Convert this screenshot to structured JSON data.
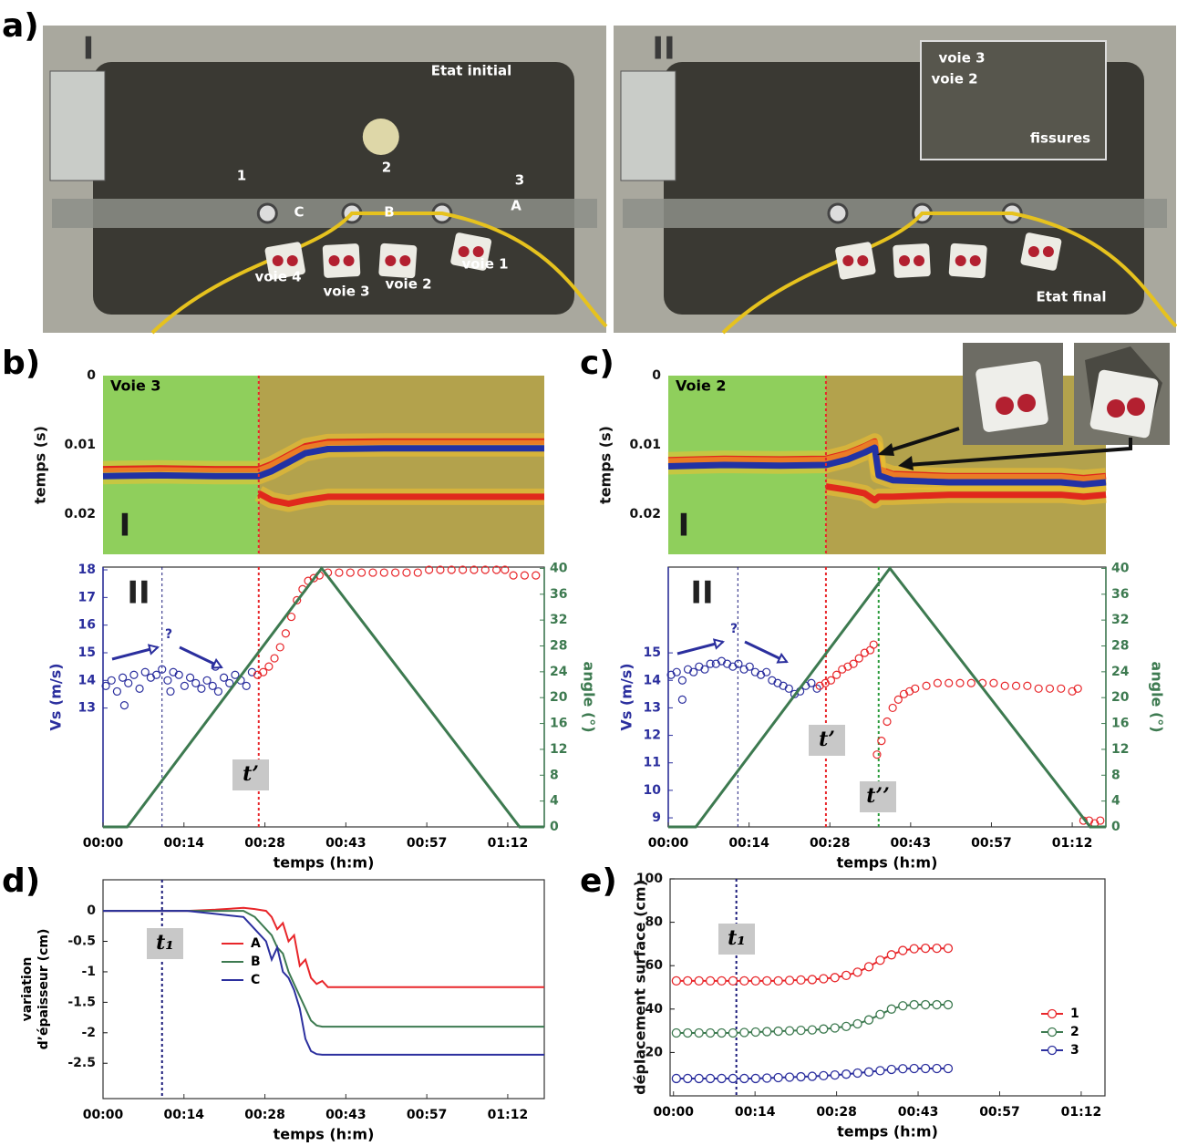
{
  "panel_labels": [
    "a)",
    "b)",
    "c)",
    "d)",
    "e)"
  ],
  "photos": [
    {
      "label": "I",
      "texts": [
        "Etat initial",
        "1",
        "2",
        "3",
        "C",
        "B",
        "A",
        "voie 4",
        "voie 3",
        "voie 2",
        "voie 1"
      ]
    },
    {
      "label": "II",
      "texts": [
        "voie 3",
        "voie 2",
        "fissures",
        "Etat final"
      ]
    }
  ],
  "chart_data": [
    {
      "type": "heatmap",
      "title": "Voie 3",
      "label": "I",
      "ylabel": "temps (s)",
      "xlim": [
        0,
        78.5
      ],
      "ylim": [
        0.0258,
        0
      ],
      "yticks": [
        0,
        0.01,
        0.02
      ],
      "regions": [
        {
          "from": 0,
          "to": 27.7,
          "color": "#8fcf5c"
        },
        {
          "from": 27.7,
          "to": 78.5,
          "color": "#b3a24c"
        }
      ],
      "x": [
        0,
        10,
        20,
        27.7,
        30,
        33,
        36,
        40,
        50,
        60,
        70,
        72,
        78.5
      ],
      "traces": [
        {
          "color": "#e0281c",
          "values": [
            0.0135,
            0.0134,
            0.0135,
            0.0135,
            0.0128,
            0.0115,
            0.0102,
            0.0096,
            0.0095,
            0.0095,
            0.0095,
            0.0095,
            0.0095
          ]
        },
        {
          "color": "#2232a4",
          "values": [
            0.0145,
            0.0144,
            0.0145,
            0.0145,
            0.0138,
            0.0125,
            0.0112,
            0.0106,
            0.0105,
            0.0105,
            0.0105,
            0.0105,
            0.0105
          ]
        },
        {
          "color": "#e0281c",
          "values": [
            null,
            null,
            null,
            0.017,
            0.018,
            0.0185,
            0.018,
            0.0175,
            0.0175,
            0.0175,
            0.0175,
            0.0175,
            0.0175
          ]
        }
      ],
      "vlines": [
        {
          "x": 27.7,
          "color": "#e8262a"
        }
      ]
    },
    {
      "type": "scatter",
      "label": "II",
      "ylabel": "Vs (m/s)",
      "y2label": "angle (°)",
      "xlabel": "temps (h:m)",
      "ycolor": "#2b2f9e",
      "y2color": "#3d7a50",
      "xlim": [
        0,
        78.5
      ],
      "ylim": [
        8.7,
        18.1
      ],
      "y2lim": [
        0,
        40.2
      ],
      "yticks": [
        13,
        14,
        15,
        16,
        17,
        18
      ],
      "y2ticks": [
        0,
        4,
        8,
        12,
        16,
        20,
        24,
        28,
        32,
        36,
        40
      ],
      "xticks": [
        {
          "value": 0,
          "label": "00:00"
        },
        {
          "value": 14.4,
          "label": "00:14"
        },
        {
          "value": 28.8,
          "label": "00:28"
        },
        {
          "value": 43.2,
          "label": "00:43"
        },
        {
          "value": 57.6,
          "label": "00:57"
        },
        {
          "value": 72,
          "label": "01:12"
        }
      ],
      "series": [
        {
          "color": "#2b2f9e",
          "x": [
            0.5,
            1.5,
            2.5,
            3.5,
            4.5,
            5.5,
            6.5,
            7.5,
            8.5,
            9.5,
            10.5,
            11.5,
            12.5,
            13.5,
            14.5,
            15.5,
            16.5,
            17.5,
            18.5,
            19.5,
            20.5,
            21.5,
            22.5,
            23.5,
            24.5,
            25.5,
            26.5,
            3.8,
            12,
            20
          ],
          "values": [
            13.8,
            14.0,
            13.6,
            14.1,
            13.9,
            14.2,
            13.7,
            14.3,
            14.1,
            14.2,
            14.4,
            14.0,
            14.3,
            14.2,
            13.8,
            14.1,
            13.9,
            13.7,
            14.0,
            13.8,
            13.6,
            14.1,
            13.9,
            14.2,
            14.0,
            13.8,
            14.3,
            13.1,
            13.6,
            14.5
          ]
        },
        {
          "color": "#e8262a",
          "x": [
            27.5,
            28.5,
            29.5,
            30.5,
            31.5,
            32.5,
            33.5,
            34.5,
            35.5,
            36.5,
            37.5,
            38.5,
            40,
            42,
            44,
            46,
            48,
            50,
            52,
            54,
            56,
            58,
            60,
            62,
            64,
            66,
            68,
            70,
            71.5,
            73,
            75,
            77
          ],
          "values": [
            14.2,
            14.3,
            14.5,
            14.8,
            15.2,
            15.7,
            16.3,
            16.9,
            17.3,
            17.6,
            17.7,
            17.8,
            17.9,
            17.9,
            17.9,
            17.9,
            17.9,
            17.9,
            17.9,
            17.9,
            17.9,
            18.0,
            18.0,
            18.0,
            18.0,
            18.0,
            18.0,
            18.0,
            18.0,
            17.8,
            17.8,
            17.8
          ]
        },
        {
          "color": "#3d7a50",
          "axis": "y2",
          "mark": "line",
          "x": [
            0,
            4.3,
            38.9,
            74.1,
            78.5
          ],
          "values": [
            0,
            0,
            40,
            0,
            0
          ]
        }
      ],
      "annotations": [
        "?"
      ],
      "vlines": [
        {
          "x": 27.7,
          "color": "#e8262a",
          "label": "t’"
        },
        {
          "x": 10.5,
          "color": "#1a1a7a"
        }
      ]
    },
    {
      "type": "heatmap",
      "title": "Voie 2",
      "label": "I",
      "ylabel": "temps (s)",
      "xlim": [
        0,
        78
      ],
      "ylim": [
        0.0258,
        0
      ],
      "yticks": [
        0,
        0.01,
        0.02
      ],
      "regions": [
        {
          "from": 0,
          "to": 28.1,
          "color": "#8fcf5c"
        },
        {
          "from": 28.1,
          "to": 78,
          "color": "#b3a24c"
        }
      ],
      "x": [
        0,
        10,
        20,
        28.1,
        32,
        35,
        36.8,
        37.5,
        40,
        50,
        60,
        70,
        74,
        78
      ],
      "traces": [
        {
          "color": "#e0281c",
          "values": [
            0.0122,
            0.012,
            0.0121,
            0.012,
            0.0112,
            0.0102,
            0.0095,
            0.0135,
            0.0142,
            0.0145,
            0.0145,
            0.0145,
            0.0148,
            0.0145
          ]
        },
        {
          "color": "#2232a4",
          "values": [
            0.0131,
            0.0129,
            0.013,
            0.0129,
            0.0121,
            0.0111,
            0.0104,
            0.0144,
            0.0151,
            0.0154,
            0.0154,
            0.0154,
            0.0157,
            0.0154
          ]
        },
        {
          "color": "#e0281c",
          "values": [
            null,
            null,
            null,
            0.016,
            0.0165,
            0.017,
            0.018,
            0.0175,
            0.0175,
            0.0172,
            0.0172,
            0.0172,
            0.0175,
            0.0172
          ]
        }
      ],
      "vlines": [
        {
          "x": 28.1,
          "color": "#e8262a"
        }
      ]
    },
    {
      "type": "scatter",
      "label": "II",
      "ylabel": "Vs (m/s)",
      "y2label": "angle (°)",
      "xlabel": "temps (h:m)",
      "ycolor": "#2b2f9e",
      "y2color": "#3d7a50",
      "xlim": [
        0,
        78
      ],
      "ylim": [
        8.67,
        18.12
      ],
      "y2lim": [
        0,
        40.2
      ],
      "yticks": [
        9,
        10,
        11,
        12,
        13,
        14,
        15
      ],
      "y2ticks": [
        0,
        4,
        8,
        12,
        16,
        20,
        24,
        28,
        32,
        36,
        40
      ],
      "xticks": [
        {
          "value": 0,
          "label": "00:00"
        },
        {
          "value": 14.4,
          "label": "00:14"
        },
        {
          "value": 28.8,
          "label": "00:28"
        },
        {
          "value": 43.2,
          "label": "00:43"
        },
        {
          "value": 57.6,
          "label": "00:57"
        },
        {
          "value": 72,
          "label": "01:12"
        }
      ],
      "series": [
        {
          "color": "#2b2f9e",
          "x": [
            0.5,
            1.5,
            2.5,
            3.5,
            4.5,
            5.5,
            6.5,
            7.5,
            8.5,
            9.5,
            10.5,
            11.5,
            12.5,
            13.5,
            14.5,
            15.5,
            16.5,
            17.5,
            18.5,
            19.5,
            20.5,
            21.5,
            22.5,
            23.5,
            24.5,
            25.5,
            26.5,
            2.5
          ],
          "values": [
            14.2,
            14.3,
            14.0,
            14.4,
            14.3,
            14.5,
            14.4,
            14.6,
            14.6,
            14.7,
            14.6,
            14.5,
            14.6,
            14.4,
            14.5,
            14.3,
            14.2,
            14.3,
            14.0,
            13.9,
            13.8,
            13.7,
            13.5,
            13.6,
            13.8,
            13.9,
            13.7,
            13.3
          ]
        },
        {
          "color": "#e8262a",
          "x": [
            27,
            28,
            29,
            30,
            31,
            32,
            33,
            34,
            35,
            36,
            36.6,
            37.2,
            38,
            39,
            40,
            41,
            42,
            43,
            44,
            46,
            48,
            50,
            52,
            54,
            56,
            58,
            60,
            62,
            64,
            66,
            68,
            70,
            72,
            73,
            74,
            75,
            76,
            77
          ],
          "values": [
            13.8,
            13.9,
            14.0,
            14.2,
            14.4,
            14.5,
            14.6,
            14.8,
            15.0,
            15.1,
            15.3,
            11.3,
            11.8,
            12.5,
            13.0,
            13.3,
            13.5,
            13.6,
            13.7,
            13.8,
            13.9,
            13.9,
            13.9,
            13.9,
            13.9,
            13.9,
            13.8,
            13.8,
            13.8,
            13.7,
            13.7,
            13.7,
            13.6,
            13.7,
            8.9,
            8.9,
            8.8,
            8.9
          ]
        },
        {
          "color": "#3d7a50",
          "axis": "y2",
          "mark": "line",
          "x": [
            0,
            4.9,
            39.5,
            75.2,
            78
          ],
          "values": [
            0,
            0,
            40,
            0,
            0
          ]
        }
      ],
      "annotations": [
        "?"
      ],
      "vlines": [
        {
          "x": 28.1,
          "color": "#e8262a",
          "label": "t’"
        },
        {
          "x": 37.5,
          "color": "#2a9a3a",
          "label": "t’’"
        },
        {
          "x": 12.4,
          "color": "#1a1a7a"
        }
      ]
    },
    {
      "type": "line",
      "ylabel": [
        "variation",
        "d’épaisseur  (cm)"
      ],
      "xlabel": "temps (h:m)",
      "xlim": [
        0,
        78.5
      ],
      "ylim": [
        -3.08,
        0.51
      ],
      "yticks": [
        0,
        -0.5,
        -1,
        -1.5,
        -2,
        -2.5
      ],
      "xticks": [
        {
          "value": 0,
          "label": "00:00"
        },
        {
          "value": 14.4,
          "label": "00:14"
        },
        {
          "value": 28.8,
          "label": "00:28"
        },
        {
          "value": 43.2,
          "label": "00:43"
        },
        {
          "value": 57.6,
          "label": "00:57"
        },
        {
          "value": 72,
          "label": "01:12"
        }
      ],
      "legend": "center left",
      "x": [
        0,
        5,
        10,
        15,
        20,
        25,
        27,
        29,
        30,
        31,
        32,
        33,
        34,
        35,
        36,
        37,
        38,
        39,
        40,
        42,
        45,
        50,
        60,
        70,
        78.5
      ],
      "series": [
        {
          "name": "A",
          "color": "#e8262a",
          "values": [
            0,
            0,
            0,
            0,
            0.02,
            0.05,
            0.03,
            0,
            -0.1,
            -0.3,
            -0.2,
            -0.5,
            -0.4,
            -0.9,
            -0.8,
            -1.1,
            -1.2,
            -1.15,
            -1.25,
            -1.25,
            -1.25,
            -1.25,
            -1.25,
            -1.25,
            -1.25
          ]
        },
        {
          "name": "B",
          "color": "#3d7a50",
          "values": [
            0,
            0,
            0,
            0,
            0,
            0,
            -0.1,
            -0.3,
            -0.4,
            -0.6,
            -0.7,
            -1.0,
            -1.2,
            -1.4,
            -1.6,
            -1.8,
            -1.88,
            -1.9,
            -1.9,
            -1.9,
            -1.9,
            -1.9,
            -1.9,
            -1.9,
            -1.9
          ]
        },
        {
          "name": "C",
          "color": "#2b2f9e",
          "values": [
            0,
            0,
            0,
            0,
            -0.05,
            -0.1,
            -0.3,
            -0.5,
            -0.8,
            -0.6,
            -1.0,
            -1.1,
            -1.3,
            -1.6,
            -2.1,
            -2.3,
            -2.35,
            -2.36,
            -2.36,
            -2.36,
            -2.36,
            -2.36,
            -2.36,
            -2.36,
            -2.36
          ]
        }
      ],
      "vlines": [
        {
          "x": 10.5,
          "color": "#1a1a7a",
          "label": "t₁"
        }
      ]
    },
    {
      "type": "line",
      "markers": true,
      "ylabel": "déplacement surface (cm)",
      "xlabel": "temps (h:m)",
      "xlim": [
        -0.6,
        76.2
      ],
      "ylim": [
        0,
        100
      ],
      "yticks": [
        20,
        40,
        60,
        80,
        100
      ],
      "xticks": [
        {
          "value": 0,
          "label": "00:00"
        },
        {
          "value": 14.4,
          "label": "00:14"
        },
        {
          "value": 28.8,
          "label": "00:28"
        },
        {
          "value": 43.2,
          "label": "00:43"
        },
        {
          "value": 57.6,
          "label": "00:57"
        },
        {
          "value": 72,
          "label": "01:12"
        }
      ],
      "legend": "lower right",
      "x": [
        0.5,
        2.5,
        4.5,
        6.5,
        8.5,
        10.5,
        12.5,
        14.5,
        16.5,
        18.5,
        20.5,
        22.5,
        24.5,
        26.5,
        28.5,
        30.5,
        32.5,
        34.5,
        36.5,
        38.5,
        40.5,
        42.5,
        44.5,
        46.5,
        48.5
      ],
      "series": [
        {
          "name": "1",
          "color": "#e8262a",
          "values": [
            53,
            53,
            53,
            53,
            53,
            53,
            53,
            53,
            53,
            53,
            53.2,
            53.4,
            53.6,
            54,
            54.5,
            55.5,
            57,
            59.5,
            62.5,
            65,
            67,
            67.8,
            68,
            68,
            68
          ]
        },
        {
          "name": "2",
          "color": "#3d7a50",
          "values": [
            29,
            29,
            29,
            29,
            29,
            29,
            29.2,
            29.4,
            29.6,
            29.8,
            30,
            30.2,
            30.4,
            30.8,
            31.3,
            32,
            33.2,
            35,
            37.5,
            40,
            41.5,
            42,
            42,
            42,
            42
          ]
        },
        {
          "name": "3",
          "color": "#2b2f9e",
          "values": [
            8,
            8,
            8,
            8,
            8,
            8,
            8,
            8,
            8.2,
            8.4,
            8.6,
            8.8,
            9,
            9.3,
            9.6,
            10,
            10.5,
            11,
            11.6,
            12.2,
            12.5,
            12.6,
            12.6,
            12.6,
            12.6
          ]
        }
      ],
      "vlines": [
        {
          "x": 11.1,
          "color": "#1a1a7a",
          "label": "t₁"
        }
      ]
    }
  ]
}
